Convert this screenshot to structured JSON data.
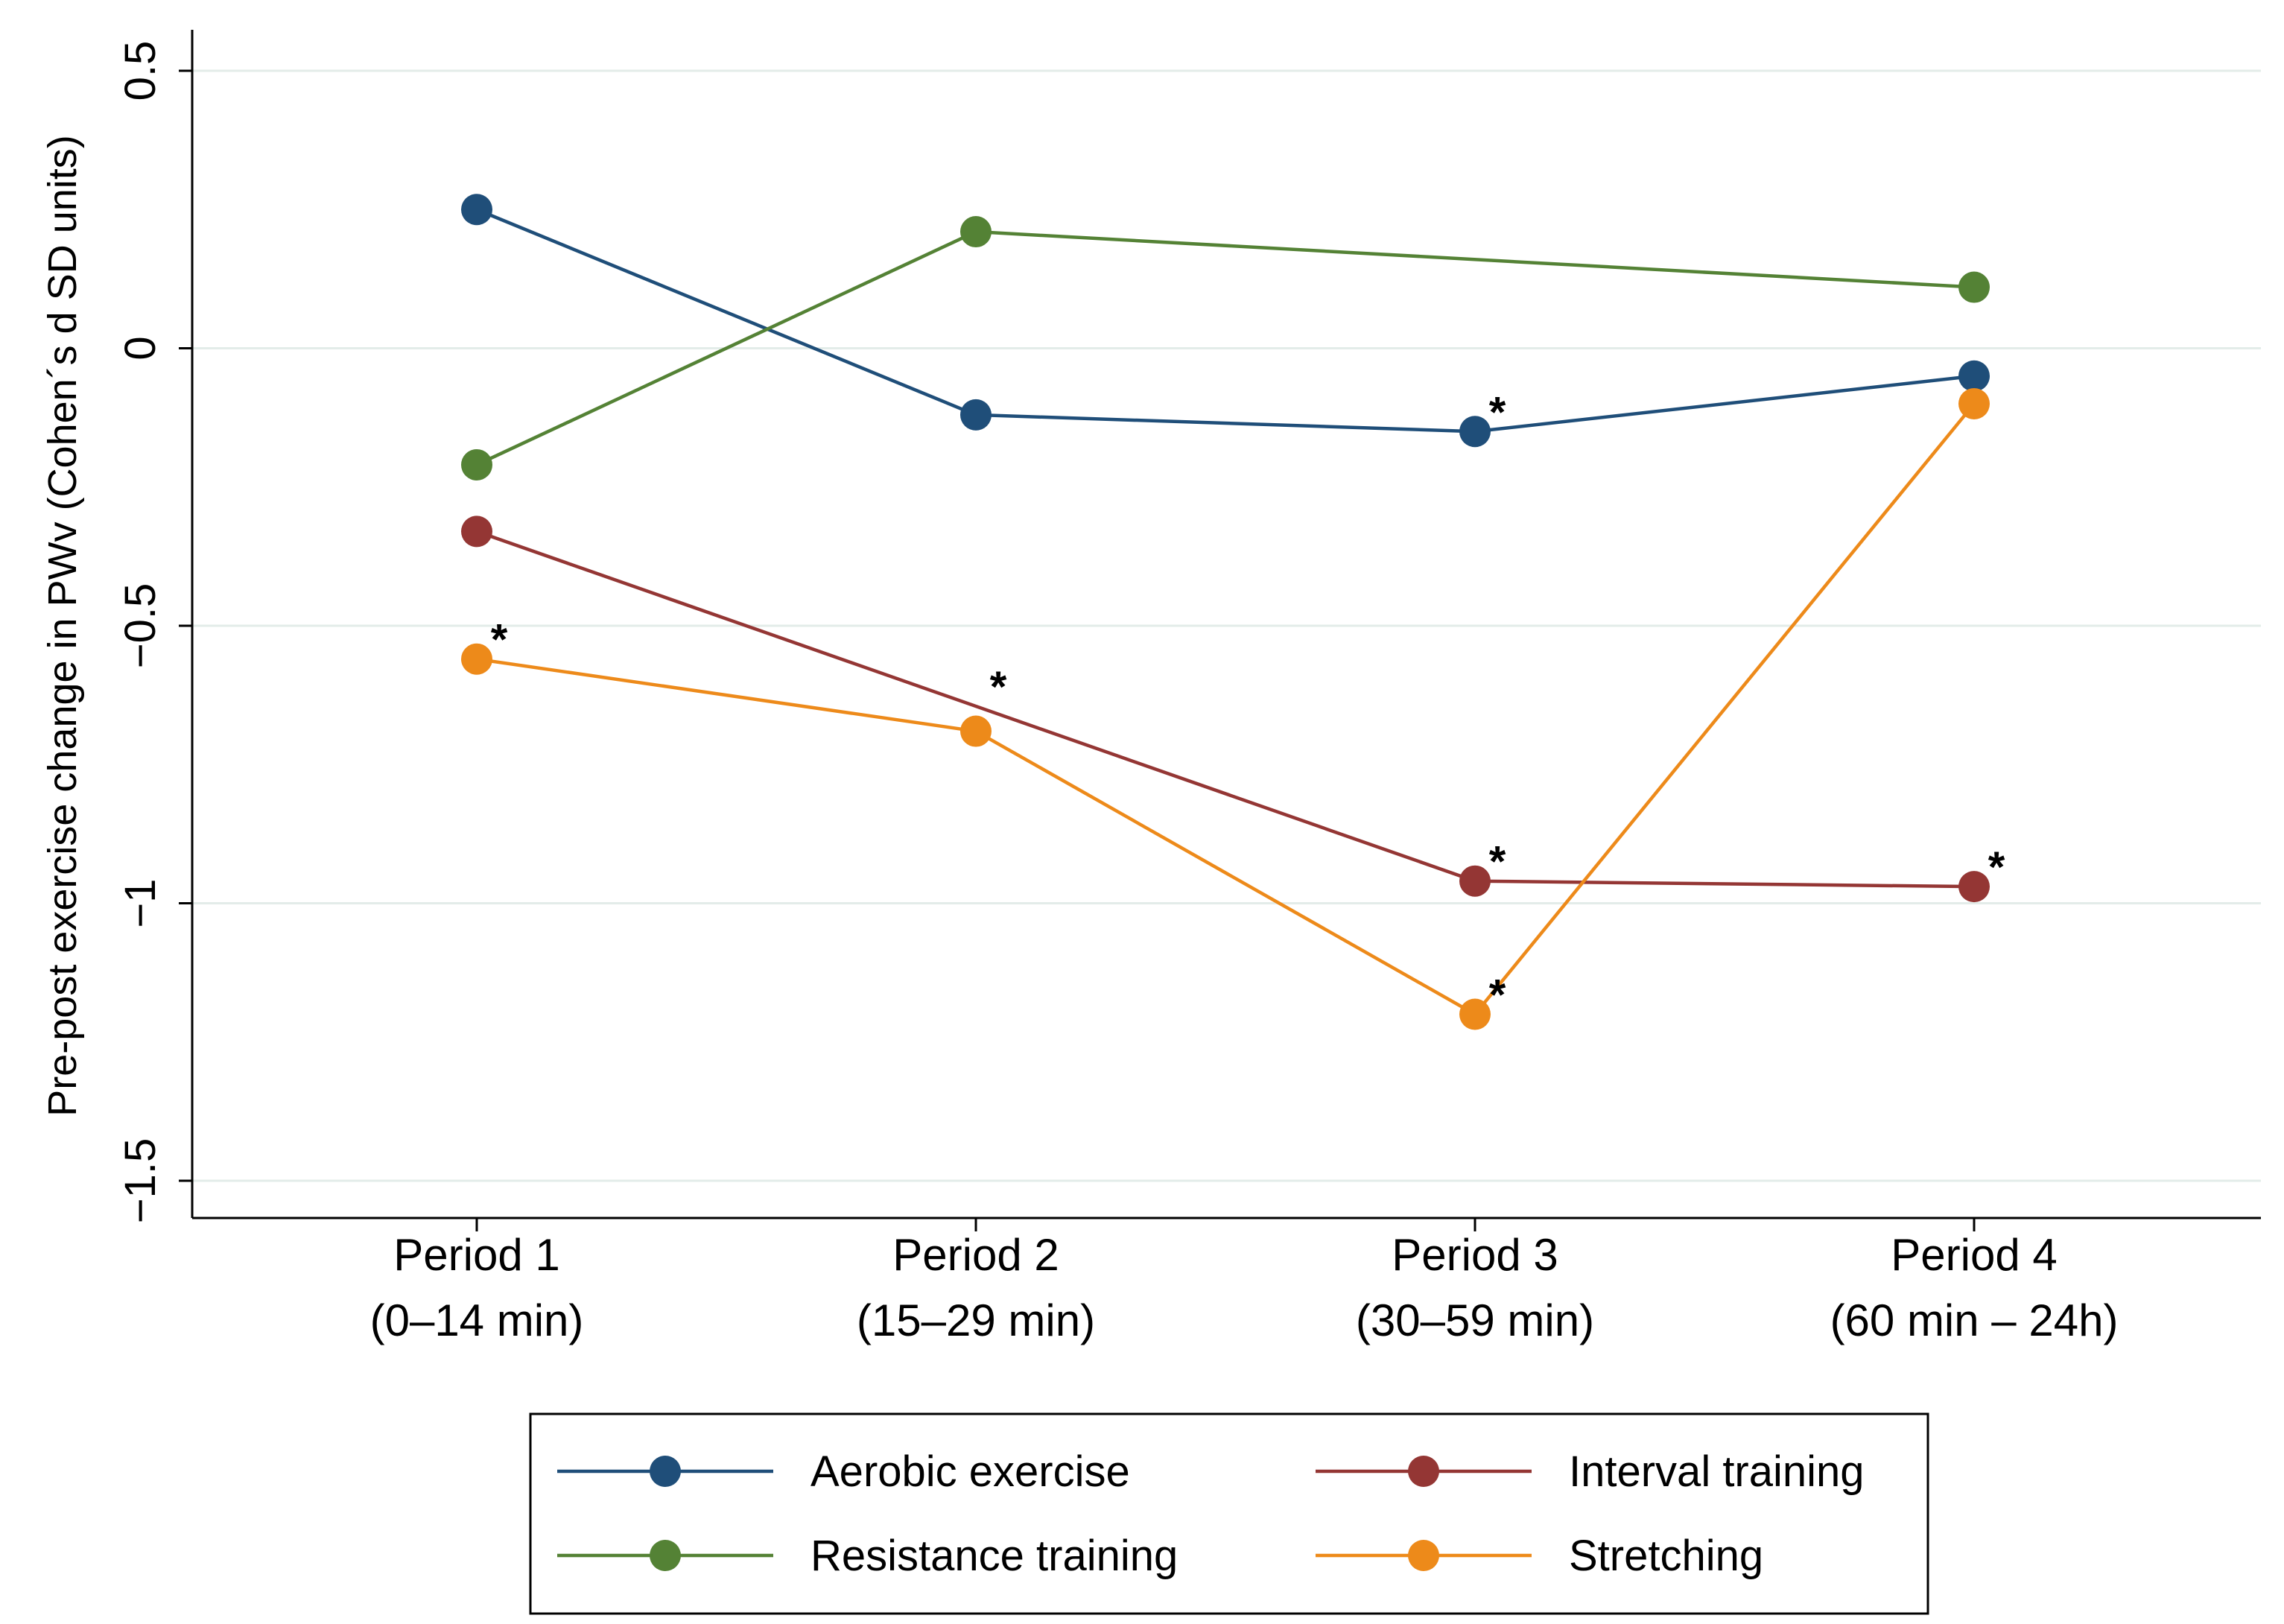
{
  "chart_data": {
    "type": "line",
    "title": "",
    "xlabel": "",
    "ylabel": "Pre-post exercise change in PWv (Cohen´s d SD units)",
    "categories": [
      {
        "line1": "Period 1",
        "line2": "(0–14 min)"
      },
      {
        "line1": "Period 2",
        "line2": "(15–29 min)"
      },
      {
        "line1": "Period 3",
        "line2": "(30–59 min)"
      },
      {
        "line1": "Period 4",
        "line2": "(60 min – 24h)"
      }
    ],
    "ylim": [
      -1.5,
      0.5
    ],
    "yticks": [
      {
        "value": 0.5,
        "label": "0.5"
      },
      {
        "value": 0,
        "label": "0"
      },
      {
        "value": -0.5,
        "label": "−0.5"
      },
      {
        "value": -1,
        "label": "−1"
      },
      {
        "value": -1.5,
        "label": "−1.5"
      }
    ],
    "grid": true,
    "legend_position": "bottom",
    "significance_marker": "*",
    "series": [
      {
        "name": "Aerobic exercise",
        "color": "#1f4e79",
        "values": [
          0.25,
          -0.12,
          -0.15,
          -0.05
        ],
        "significant": [
          false,
          false,
          true,
          false
        ]
      },
      {
        "name": "Resistance training",
        "color": "#548235",
        "values": [
          -0.21,
          0.21,
          null,
          0.11
        ],
        "significant": [
          false,
          false,
          false,
          false
        ]
      },
      {
        "name": "Interval training",
        "color": "#943634",
        "values": [
          -0.33,
          null,
          -0.96,
          -0.97
        ],
        "significant": [
          false,
          true,
          true,
          true
        ]
      },
      {
        "name": "Stretching",
        "color": "#ed8a1a",
        "values": [
          -0.56,
          -0.69,
          -1.2,
          -0.1
        ],
        "significant": [
          true,
          false,
          true,
          false
        ]
      }
    ]
  }
}
